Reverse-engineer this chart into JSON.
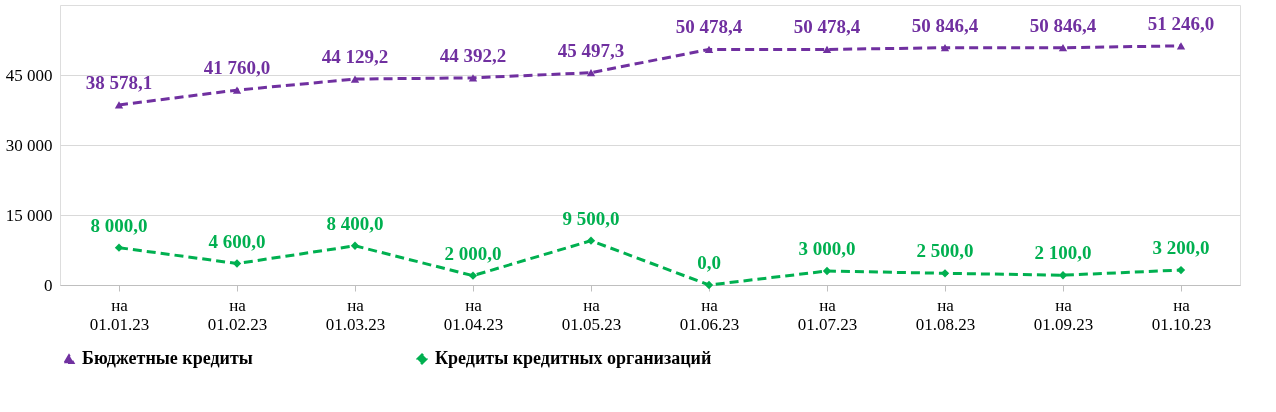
{
  "chart_data": {
    "type": "line",
    "categories": [
      "на 01.01.23",
      "на 01.02.23",
      "на 01.03.23",
      "на 01.04.23",
      "на 01.05.23",
      "на 01.06.23",
      "на 01.07.23",
      "на 01.08.23",
      "на 01.09.23",
      "на 01.10.23"
    ],
    "series": [
      {
        "name": "Бюджетные кредиты",
        "color": "#7030a0",
        "marker": "triangle",
        "line_style": "dashed",
        "values": [
          38578.1,
          41760.0,
          44129.2,
          44392.2,
          45497.3,
          50478.4,
          50478.4,
          50846.4,
          50846.4,
          51246.0
        ],
        "value_labels": [
          "38 578,1",
          "41 760,0",
          "44 129,2",
          "44 392,2",
          "45 497,3",
          "50 478,4",
          "50 478,4",
          "50 846,4",
          "50 846,4",
          "51 246,0"
        ]
      },
      {
        "name": "Кредиты кредитных организаций",
        "color": "#00b050",
        "marker": "diamond",
        "line_style": "dashed",
        "values": [
          8000.0,
          4600.0,
          8400.0,
          2000.0,
          9500.0,
          0.0,
          3000.0,
          2500.0,
          2100.0,
          3200.0
        ],
        "value_labels": [
          "8 000,0",
          "4 600,0",
          "8 400,0",
          "2 000,0",
          "9 500,0",
          "0,0",
          "3 000,0",
          "2 500,0",
          "2 100,0",
          "3 200,0"
        ]
      }
    ],
    "ylim": [
      0,
      60000
    ],
    "yticks": [
      {
        "value": 0,
        "label": "0"
      },
      {
        "value": 15000,
        "label": "15 000"
      },
      {
        "value": 30000,
        "label": "30 000"
      },
      {
        "value": 45000,
        "label": "45 000"
      }
    ],
    "grid": "y",
    "legend": "bottom"
  }
}
